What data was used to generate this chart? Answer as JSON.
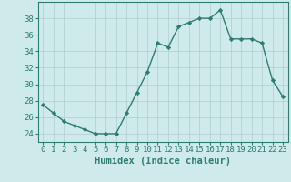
{
  "x": [
    0,
    1,
    2,
    3,
    4,
    5,
    6,
    7,
    8,
    9,
    10,
    11,
    12,
    13,
    14,
    15,
    16,
    17,
    18,
    19,
    20,
    21,
    22,
    23
  ],
  "y": [
    27.5,
    26.5,
    25.5,
    25.0,
    24.5,
    24.0,
    24.0,
    24.0,
    26.5,
    29.0,
    31.5,
    35.0,
    34.5,
    37.0,
    37.5,
    38.0,
    38.0,
    39.0,
    35.5,
    35.5,
    35.5,
    35.0,
    30.5,
    28.5
  ],
  "line_color": "#2e7d6e",
  "marker": "D",
  "marker_size": 2.2,
  "bg_color": "#ceeaea",
  "grid_color": "#b0cece",
  "tick_color": "#2e7d6e",
  "spine_color": "#2e7d6e",
  "xlabel": "Humidex (Indice chaleur)",
  "ylim": [
    23,
    40
  ],
  "xlim": [
    -0.5,
    23.5
  ],
  "yticks": [
    24,
    26,
    28,
    30,
    32,
    34,
    36,
    38
  ],
  "xticks": [
    0,
    1,
    2,
    3,
    4,
    5,
    6,
    7,
    8,
    9,
    10,
    11,
    12,
    13,
    14,
    15,
    16,
    17,
    18,
    19,
    20,
    21,
    22,
    23
  ],
  "tick_label_fontsize": 6.5,
  "xlabel_fontsize": 7.5,
  "linewidth": 1.0
}
